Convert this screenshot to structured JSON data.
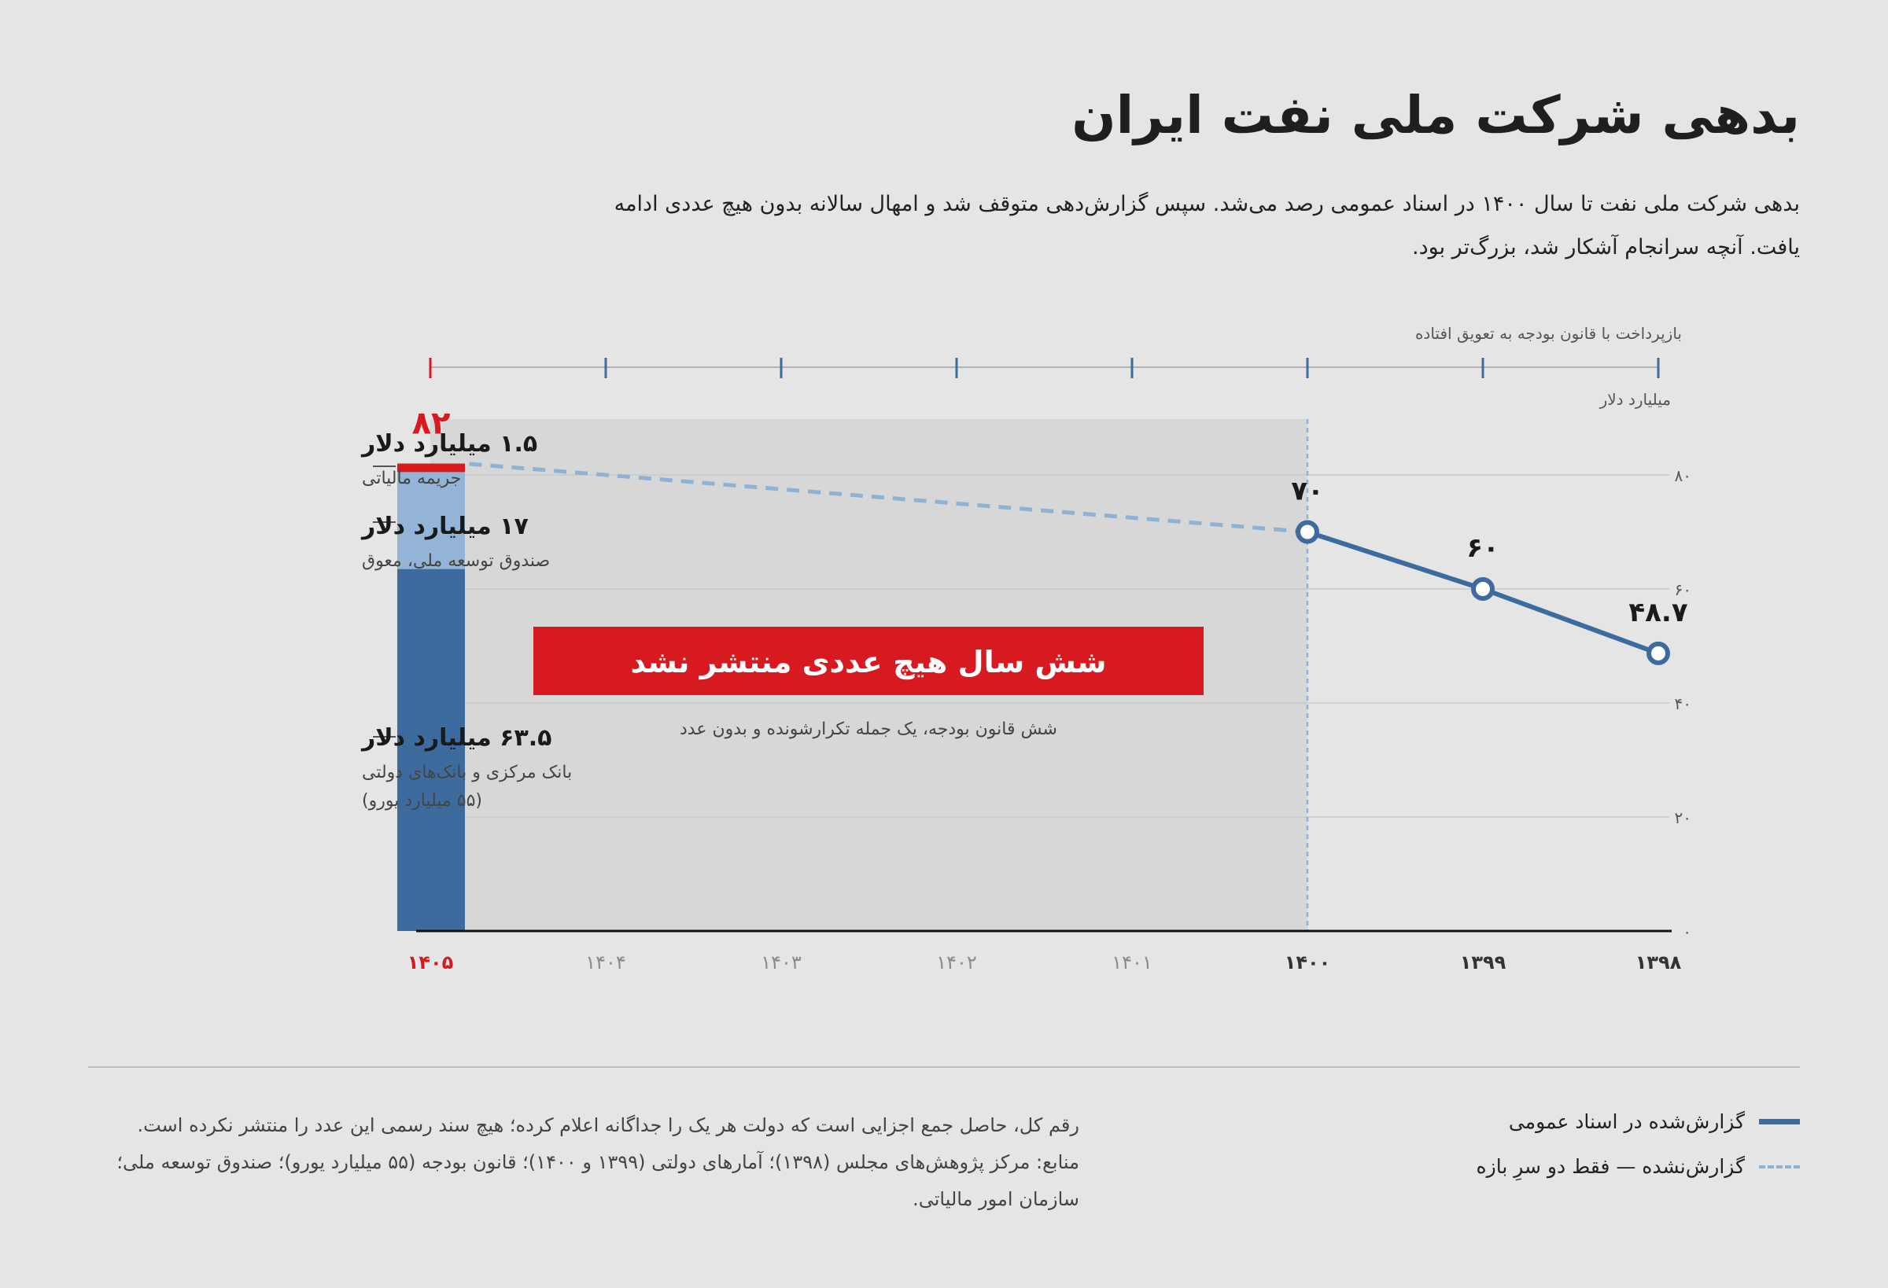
{
  "header": {
    "title": "بدهی شرکت ملی نفت ایران",
    "subtitle": "بدهی شرکت ملی نفت تا سال ۱۴۰۰ در اسناد عمومی رصد می‌شد. سپس گزارش‌دهی متوقف شد و امهال سالانه بدون هیچ عددی ادامه یافت. آنچه سرانجام آشکار شد، بزرگ‌تر بود."
  },
  "chart_data": {
    "type": "line",
    "x_categories": [
      "۱۴۰۵",
      "۱۴۰۴",
      "۱۴۰۳",
      "۱۴۰۲",
      "۱۴۰۱",
      "۱۴۰۰",
      "۱۳۹۹",
      "۱۳۹۸"
    ],
    "x_direction": "right-to-left",
    "y_unit_label": "میلیارد دلار",
    "y_ticks": [
      "۰",
      "۲۰",
      "۴۰",
      "۶۰",
      "۸۰"
    ],
    "y_tick_values": [
      0,
      20,
      40,
      60,
      80
    ],
    "ylim": [
      0,
      90
    ],
    "grid": true,
    "top_strip_label": "بازپرداخت با قانون بودجه به تعویق افتاده",
    "colors": {
      "reported": "#3d6b9e",
      "unreported": "#8fb1d4",
      "highlight": "#d71920",
      "bar_light": "#93b4d6",
      "gap_shade": "#d7d7d7"
    },
    "series": [
      {
        "name": "گزارش‌شده در اسناد عمومی",
        "style": "solid",
        "points": [
          {
            "x": "۱۳۹۸",
            "y": 48.7,
            "label": "۴۸.۷"
          },
          {
            "x": "۱۳۹۹",
            "y": 60,
            "label": "۶۰"
          },
          {
            "x": "۱۴۰۰",
            "y": 70,
            "label": "۷۰"
          }
        ]
      },
      {
        "name": "گزارش‌نشده — فقط دو سرِ بازه",
        "style": "dashed",
        "points": [
          {
            "x": "۱۴۰۰",
            "y": 70
          },
          {
            "x": "۱۴۰۵",
            "y": 82
          }
        ]
      }
    ],
    "stacked_bar": {
      "x": "۱۴۰۵",
      "total": 82,
      "total_label": "۸۲",
      "segments": [
        {
          "value": 63.5,
          "label": "۶۳.۵ میلیارد دلار",
          "desc": [
            "بانک مرکزی و بانک‌های دولتی",
            "(۵۵ میلیارد یورو)"
          ],
          "color": "#3d6b9e"
        },
        {
          "value": 17,
          "label": "۱۷ میلیارد دلار",
          "desc": [
            "صندوق توسعه ملی، معوق"
          ],
          "color": "#93b4d6"
        },
        {
          "value": 1.5,
          "label": "۱.۵ میلیارد دلار",
          "desc": [
            "جریمه مالیاتی"
          ],
          "color": "#d71920"
        }
      ]
    },
    "gap_banner": "شش سال هیچ عددی منتشر نشد",
    "gap_note": "شش قانون بودجه، یک جمله تکرارشونده و بدون عدد"
  },
  "legend": {
    "reported": "گزارش‌شده در اسناد عمومی",
    "unreported": "گزارش‌نشده — فقط دو سرِ بازه"
  },
  "notes": {
    "text": "رقم کل، حاصل جمع اجزایی است که دولت هر یک را جداگانه اعلام کرده؛ هیچ سند رسمی این عدد را منتشر نکرده است. منابع: مرکز پژوهش‌های مجلس (۱۳۹۸)؛ آمارهای دولتی (۱۳۹۹ و ۱۴۰۰)؛ قانون بودجه (۵۵ میلیارد یورو)؛ صندوق توسعه ملی؛ سازمان امور مالیاتی."
  }
}
